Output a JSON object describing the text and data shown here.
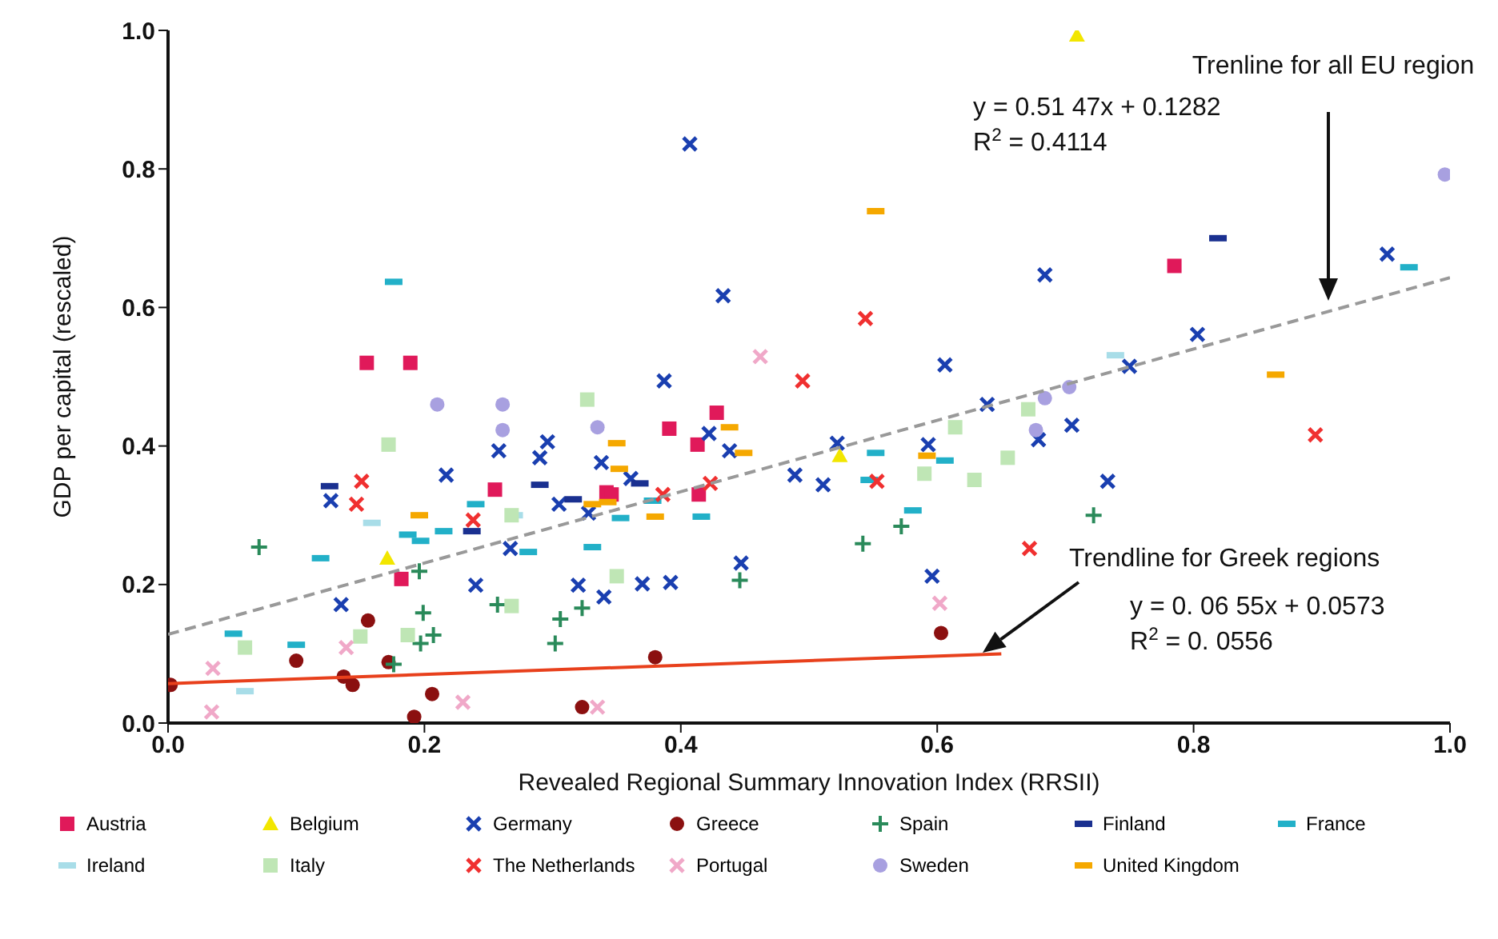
{
  "chart_data": {
    "type": "scatter",
    "xlabel": "Revealed Regional Summary Innovation Index (RRSII)",
    "ylabel": "GDP per capital (rescaled)",
    "xlim": [
      0,
      1
    ],
    "ylim": [
      0,
      1
    ],
    "xticks": [
      {
        "value": 0,
        "label": "0.0"
      },
      {
        "value": 0.2,
        "label": "0.2"
      },
      {
        "value": 0.4,
        "label": "0.4"
      },
      {
        "value": 0.6,
        "label": "0.6"
      },
      {
        "value": 0.8,
        "label": "0.8"
      },
      {
        "value": 1,
        "label": "1.0"
      }
    ],
    "yticks": [
      {
        "value": 0,
        "label": "0.0"
      },
      {
        "value": 0.2,
        "label": "0.2"
      },
      {
        "value": 0.4,
        "label": "0.4"
      },
      {
        "value": 0.6,
        "label": "0.6"
      },
      {
        "value": 0.8,
        "label": "0.8"
      },
      {
        "value": 1,
        "label": "1.0"
      }
    ],
    "legend": "bottom",
    "series": [
      {
        "name": "Austria",
        "color": "#e0195a",
        "marker": "square",
        "x": [
          0.155,
          0.189,
          0.255,
          0.182,
          0.342,
          0.428,
          0.391,
          0.413,
          0.346,
          0.414,
          0.785
        ],
        "values": [
          0.52,
          0.52,
          0.337,
          0.208,
          0.333,
          0.448,
          0.425,
          0.402,
          0.33,
          0.33,
          0.66
        ]
      },
      {
        "name": "Belgium",
        "color": "#f2e600",
        "marker": "triangle",
        "x": [
          0.171,
          0.524,
          0.709
        ],
        "values": [
          0.238,
          0.386,
          0.993
        ]
      },
      {
        "name": "Germany",
        "color": "#1a3fb0",
        "marker": "cross",
        "x": [
          0.135,
          0.127,
          0.217,
          0.258,
          0.29,
          0.296,
          0.24,
          0.267,
          0.305,
          0.328,
          0.32,
          0.34,
          0.407,
          0.433,
          0.387,
          0.422,
          0.438,
          0.361,
          0.338,
          0.37,
          0.392,
          0.447,
          0.489,
          0.511,
          0.522,
          0.593,
          0.606,
          0.639,
          0.596,
          0.684,
          0.803,
          0.75,
          0.705,
          0.679,
          0.733,
          0.951
        ],
        "values": [
          0.171,
          0.321,
          0.358,
          0.393,
          0.383,
          0.406,
          0.199,
          0.252,
          0.316,
          0.303,
          0.199,
          0.182,
          0.836,
          0.617,
          0.494,
          0.418,
          0.393,
          0.353,
          0.376,
          0.201,
          0.203,
          0.231,
          0.358,
          0.344,
          0.404,
          0.402,
          0.517,
          0.46,
          0.212,
          0.647,
          0.561,
          0.515,
          0.43,
          0.409,
          0.349,
          0.677
        ]
      },
      {
        "name": "Greece",
        "color": "#8b1010",
        "marker": "circle",
        "x": [
          0.002,
          0.1,
          0.137,
          0.144,
          0.156,
          0.172,
          0.206,
          0.192,
          0.323,
          0.38,
          0.603
        ],
        "values": [
          0.055,
          0.09,
          0.067,
          0.055,
          0.148,
          0.088,
          0.042,
          0.009,
          0.023,
          0.095,
          0.13
        ]
      },
      {
        "name": "Spain",
        "color": "#2a8a5a",
        "marker": "plus",
        "x": [
          0.071,
          0.196,
          0.199,
          0.207,
          0.197,
          0.257,
          0.302,
          0.323,
          0.306,
          0.176,
          0.446,
          0.572,
          0.542,
          0.722
        ],
        "values": [
          0.254,
          0.219,
          0.159,
          0.127,
          0.115,
          0.171,
          0.115,
          0.166,
          0.15,
          0.085,
          0.206,
          0.284,
          0.259,
          0.3
        ]
      },
      {
        "name": "Finland",
        "color": "#1a3090",
        "x": [
          0.126,
          0.29,
          0.316,
          0.237,
          0.368,
          0.819
        ],
        "values": [
          0.342,
          0.344,
          0.323,
          0.277,
          0.346,
          0.7
        ]
      },
      {
        "name": "France",
        "color": "#22b0c8",
        "x": [
          0.176,
          0.119,
          0.1,
          0.187,
          0.197,
          0.215,
          0.24,
          0.281,
          0.331,
          0.051,
          0.353,
          0.378,
          0.416,
          0.552,
          0.581,
          0.547,
          0.606,
          0.968
        ],
        "values": [
          0.637,
          0.238,
          0.113,
          0.272,
          0.263,
          0.277,
          0.316,
          0.247,
          0.254,
          0.129,
          0.296,
          0.321,
          0.298,
          0.39,
          0.307,
          0.351,
          0.379,
          0.658
        ]
      },
      {
        "name": "Ireland",
        "color": "#a8dde8",
        "x": [
          0.159,
          0.739,
          0.27,
          0.06
        ],
        "values": [
          0.289,
          0.531,
          0.3,
          0.046
        ]
      },
      {
        "name": "Italy",
        "color": "#bfe6b5",
        "marker": "square",
        "x": [
          0.06,
          0.15,
          0.187,
          0.268,
          0.268,
          0.172,
          0.327,
          0.35,
          0.59,
          0.629,
          0.655,
          0.614,
          0.671
        ],
        "values": [
          0.109,
          0.125,
          0.127,
          0.3,
          0.169,
          0.402,
          0.467,
          0.212,
          0.36,
          0.351,
          0.383,
          0.427,
          0.453
        ]
      },
      {
        "name": "The Netherlands",
        "color": "#f03030",
        "marker": "cross",
        "x": [
          0.151,
          0.147,
          0.238,
          0.544,
          0.495,
          0.553,
          0.423,
          0.386,
          0.672,
          0.895
        ],
        "values": [
          0.349,
          0.316,
          0.293,
          0.584,
          0.494,
          0.349,
          0.346,
          0.33,
          0.252,
          0.416
        ]
      },
      {
        "name": "Portugal",
        "color": "#f0a8c8",
        "marker": "cross",
        "x": [
          0.035,
          0.034,
          0.139,
          0.23,
          0.335,
          0.462,
          0.602
        ],
        "values": [
          0.079,
          0.016,
          0.109,
          0.03,
          0.023,
          0.529,
          0.173
        ]
      },
      {
        "name": "Sweden",
        "color": "#a8a0e0",
        "marker": "circle",
        "x": [
          0.21,
          0.261,
          0.261,
          0.335,
          0.996,
          0.703,
          0.684,
          0.677
        ],
        "values": [
          0.46,
          0.46,
          0.423,
          0.427,
          0.792,
          0.485,
          0.469,
          0.423
        ]
      },
      {
        "name": "United Kingdom",
        "color": "#f5a800",
        "x": [
          0.196,
          0.331,
          0.552,
          0.438,
          0.449,
          0.352,
          0.35,
          0.343,
          0.592,
          0.38,
          0.864
        ],
        "values": [
          0.3,
          0.316,
          0.739,
          0.427,
          0.39,
          0.367,
          0.404,
          0.319,
          0.386,
          0.298,
          0.503
        ]
      },
      {
        "type": "line",
        "color": "#999999",
        "line_style": "dashed",
        "x": [
          0,
          1
        ],
        "values": [
          0.128,
          0.643
        ]
      },
      {
        "type": "line",
        "color": "#e8401c",
        "line_style": "solid",
        "x": [
          0,
          0.65
        ],
        "values": [
          0.057,
          0.1
        ]
      }
    ],
    "annotations": [
      "Trenline for all EU region",
      "y = 0.51 47x + 0.1282",
      "R$^{2}$ = 0.4114",
      "Trendline for Greek regions",
      "y = 0. 06 55x + 0.0573",
      "R$^{2}$ = 0. 0556"
    ]
  }
}
